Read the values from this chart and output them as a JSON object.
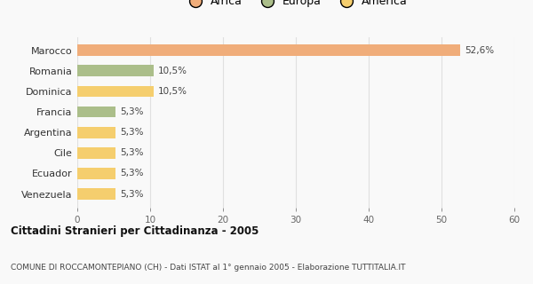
{
  "categories": [
    "Venezuela",
    "Ecuador",
    "Cile",
    "Argentina",
    "Francia",
    "Dominica",
    "Romania",
    "Marocco"
  ],
  "values": [
    5.3,
    5.3,
    5.3,
    5.3,
    5.3,
    10.5,
    10.5,
    52.6
  ],
  "labels": [
    "5,3%",
    "5,3%",
    "5,3%",
    "5,3%",
    "5,3%",
    "10,5%",
    "10,5%",
    "52,6%"
  ],
  "colors": [
    "#f5ce6e",
    "#f5ce6e",
    "#f5ce6e",
    "#f5ce6e",
    "#abbe8a",
    "#f5ce6e",
    "#abbe8a",
    "#f0ad7a"
  ],
  "legend_labels": [
    "Africa",
    "Europa",
    "America"
  ],
  "legend_colors": [
    "#f0ad7a",
    "#abbe8a",
    "#f5ce6e"
  ],
  "title": "Cittadini Stranieri per Cittadinanza - 2005",
  "subtitle": "COMUNE DI ROCCAMONTEPIANO (CH) - Dati ISTAT al 1° gennaio 2005 - Elaborazione TUTTITALIA.IT",
  "xlim": [
    0,
    60
  ],
  "xticks": [
    0,
    10,
    20,
    30,
    40,
    50,
    60
  ],
  "bg_color": "#f9f9f9",
  "grid_color": "#e0e0e0",
  "bar_height": 0.55
}
